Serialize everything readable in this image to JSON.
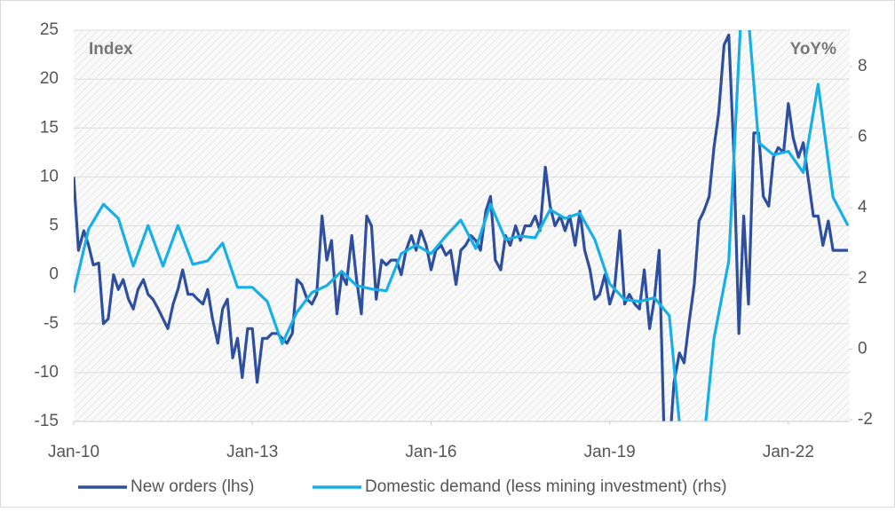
{
  "chart_data": {
    "type": "line",
    "y_label": "Index",
    "y2_label": "YoY%",
    "xlim": [
      2010,
      2023.03
    ],
    "xticks": [
      {
        "value": 2010,
        "label": "Jan-10"
      },
      {
        "value": 2013,
        "label": "Jan-13"
      },
      {
        "value": 2016,
        "label": "Jan-16"
      },
      {
        "value": 2019,
        "label": "Jan-19"
      },
      {
        "value": 2022,
        "label": "Jan-22"
      }
    ],
    "ylim": [
      -15,
      25
    ],
    "yticks": [
      -15,
      -10,
      -5,
      0,
      5,
      10,
      15,
      20,
      25
    ],
    "y2lim": [
      -2.05,
      9.03
    ],
    "y2ticks": [
      -2,
      0,
      2,
      4,
      6,
      8
    ],
    "grid": true,
    "legend": "bottom",
    "series": [
      {
        "name": "New orders (lhs)",
        "color": "#2e4f9e",
        "axis": "y",
        "x": [
          2010,
          2010.08,
          2010.17,
          2010.25,
          2010.33,
          2010.42,
          2010.5,
          2010.58,
          2010.67,
          2010.75,
          2010.83,
          2010.92,
          2011,
          2011.08,
          2011.17,
          2011.25,
          2011.33,
          2011.42,
          2011.5,
          2011.58,
          2011.67,
          2011.75,
          2011.83,
          2011.92,
          2012,
          2012.08,
          2012.17,
          2012.25,
          2012.33,
          2012.42,
          2012.5,
          2012.58,
          2012.67,
          2012.75,
          2012.83,
          2012.92,
          2013,
          2013.08,
          2013.17,
          2013.25,
          2013.33,
          2013.42,
          2013.5,
          2013.58,
          2013.67,
          2013.75,
          2013.83,
          2013.92,
          2014,
          2014.08,
          2014.17,
          2014.25,
          2014.33,
          2014.42,
          2014.5,
          2014.58,
          2014.67,
          2014.75,
          2014.83,
          2014.92,
          2015,
          2015.08,
          2015.17,
          2015.25,
          2015.33,
          2015.42,
          2015.5,
          2015.58,
          2015.67,
          2015.75,
          2015.83,
          2015.92,
          2016,
          2016.08,
          2016.17,
          2016.25,
          2016.33,
          2016.42,
          2016.5,
          2016.58,
          2016.67,
          2016.75,
          2016.83,
          2016.92,
          2017,
          2017.08,
          2017.17,
          2017.25,
          2017.33,
          2017.42,
          2017.5,
          2017.58,
          2017.67,
          2017.75,
          2017.83,
          2017.92,
          2018,
          2018.08,
          2018.17,
          2018.25,
          2018.33,
          2018.42,
          2018.5,
          2018.58,
          2018.67,
          2018.75,
          2018.83,
          2018.92,
          2019,
          2019.08,
          2019.17,
          2019.25,
          2019.33,
          2019.42,
          2019.5,
          2019.58,
          2019.67,
          2019.75,
          2019.83,
          2019.92,
          2020,
          2020.08,
          2020.17,
          2020.25,
          2020.33,
          2020.42,
          2020.5,
          2020.58,
          2020.67,
          2020.75,
          2020.83,
          2020.92,
          2021,
          2021.08,
          2021.17,
          2021.25,
          2021.33,
          2021.42,
          2021.5,
          2021.58,
          2021.67,
          2021.75,
          2021.83,
          2021.92,
          2022,
          2022.08,
          2022.17,
          2022.25,
          2022.33,
          2022.42,
          2022.5,
          2022.58,
          2022.67,
          2022.75,
          2022.83,
          2022.92,
          2023
        ],
        "values": [
          10,
          2.5,
          4.5,
          3,
          1,
          1.2,
          -5,
          -4.5,
          0,
          -1.5,
          -0.5,
          -2.5,
          -3.5,
          -1.5,
          -0.5,
          -2,
          -2.5,
          -3.5,
          -4.5,
          -5.5,
          -3,
          -1.5,
          0.5,
          -2,
          -2,
          -2.5,
          -3,
          -1.5,
          -4.5,
          -7,
          -3.5,
          -2.5,
          -8.5,
          -6.5,
          -10.5,
          -5.5,
          -5.5,
          -11,
          -6.5,
          -6.5,
          -6,
          -6,
          -6.5,
          -7,
          -6,
          -0.5,
          -1,
          -2.5,
          -3,
          -2,
          6,
          1.5,
          3.5,
          -4,
          0,
          -1,
          4,
          -0.5,
          -4,
          6,
          5,
          -2.5,
          1.5,
          1,
          1.5,
          1.5,
          0,
          2.5,
          4,
          2.5,
          4.5,
          3,
          0.5,
          2.5,
          3,
          2,
          2.5,
          -1,
          2.5,
          3,
          4,
          3.5,
          2.5,
          6.5,
          8,
          1.5,
          0.5,
          4,
          3,
          5,
          3.5,
          5,
          5,
          6,
          4.5,
          11,
          7,
          5,
          6,
          4.5,
          6,
          3,
          6.5,
          2.5,
          0.5,
          -2.5,
          -2,
          0,
          -3,
          -1.5,
          4.5,
          -3,
          -2,
          -3,
          -3.5,
          0.5,
          -5.5,
          -2.5,
          2.5,
          -18,
          -18,
          -11,
          -8,
          -9,
          -5,
          -1,
          5.5,
          6.5,
          8,
          13,
          16.5,
          23.5,
          24.5,
          13,
          -6,
          6,
          -3,
          14.5,
          14.5,
          8,
          7,
          12,
          13,
          12.5,
          17.5,
          14,
          12,
          13.5,
          10,
          6,
          6,
          3,
          5.5,
          2.5,
          2.5,
          2.5,
          2.5
        ]
      },
      {
        "name": "Domestic demand (less mining investment) (rhs)",
        "color": "#17b0e6",
        "axis": "y2",
        "x": [
          2010,
          2010.25,
          2010.5,
          2010.75,
          2011,
          2011.25,
          2011.5,
          2011.75,
          2012,
          2012.25,
          2012.5,
          2012.75,
          2013,
          2013.25,
          2013.5,
          2013.75,
          2014,
          2014.25,
          2014.5,
          2014.75,
          2015,
          2015.25,
          2015.5,
          2015.75,
          2016,
          2016.25,
          2016.5,
          2016.75,
          2017,
          2017.25,
          2017.5,
          2017.75,
          2018,
          2018.25,
          2018.5,
          2018.75,
          2019,
          2019.25,
          2019.5,
          2019.75,
          2020,
          2020.25,
          2020.5,
          2020.75,
          2021,
          2021.25,
          2021.5,
          2021.75,
          2022,
          2022.25,
          2022.5,
          2022.75,
          2023
        ],
        "values": [
          1.6,
          3.4,
          4.1,
          3.7,
          2.35,
          3.5,
          2.35,
          3.5,
          2.4,
          2.5,
          3.0,
          1.75,
          1.75,
          1.35,
          0.15,
          1.05,
          1.6,
          1.8,
          2.2,
          1.8,
          1.7,
          1.65,
          2.7,
          2.95,
          2.7,
          3.2,
          3.65,
          2.85,
          4.1,
          3.1,
          3.2,
          3.15,
          3.95,
          3.7,
          3.85,
          3.1,
          1.85,
          1.4,
          1.35,
          1.45,
          0.95,
          -3.5,
          -4,
          0.3,
          2.5,
          11,
          5.85,
          5.5,
          5.6,
          5,
          7.5,
          4.3,
          3.5
        ]
      }
    ]
  }
}
